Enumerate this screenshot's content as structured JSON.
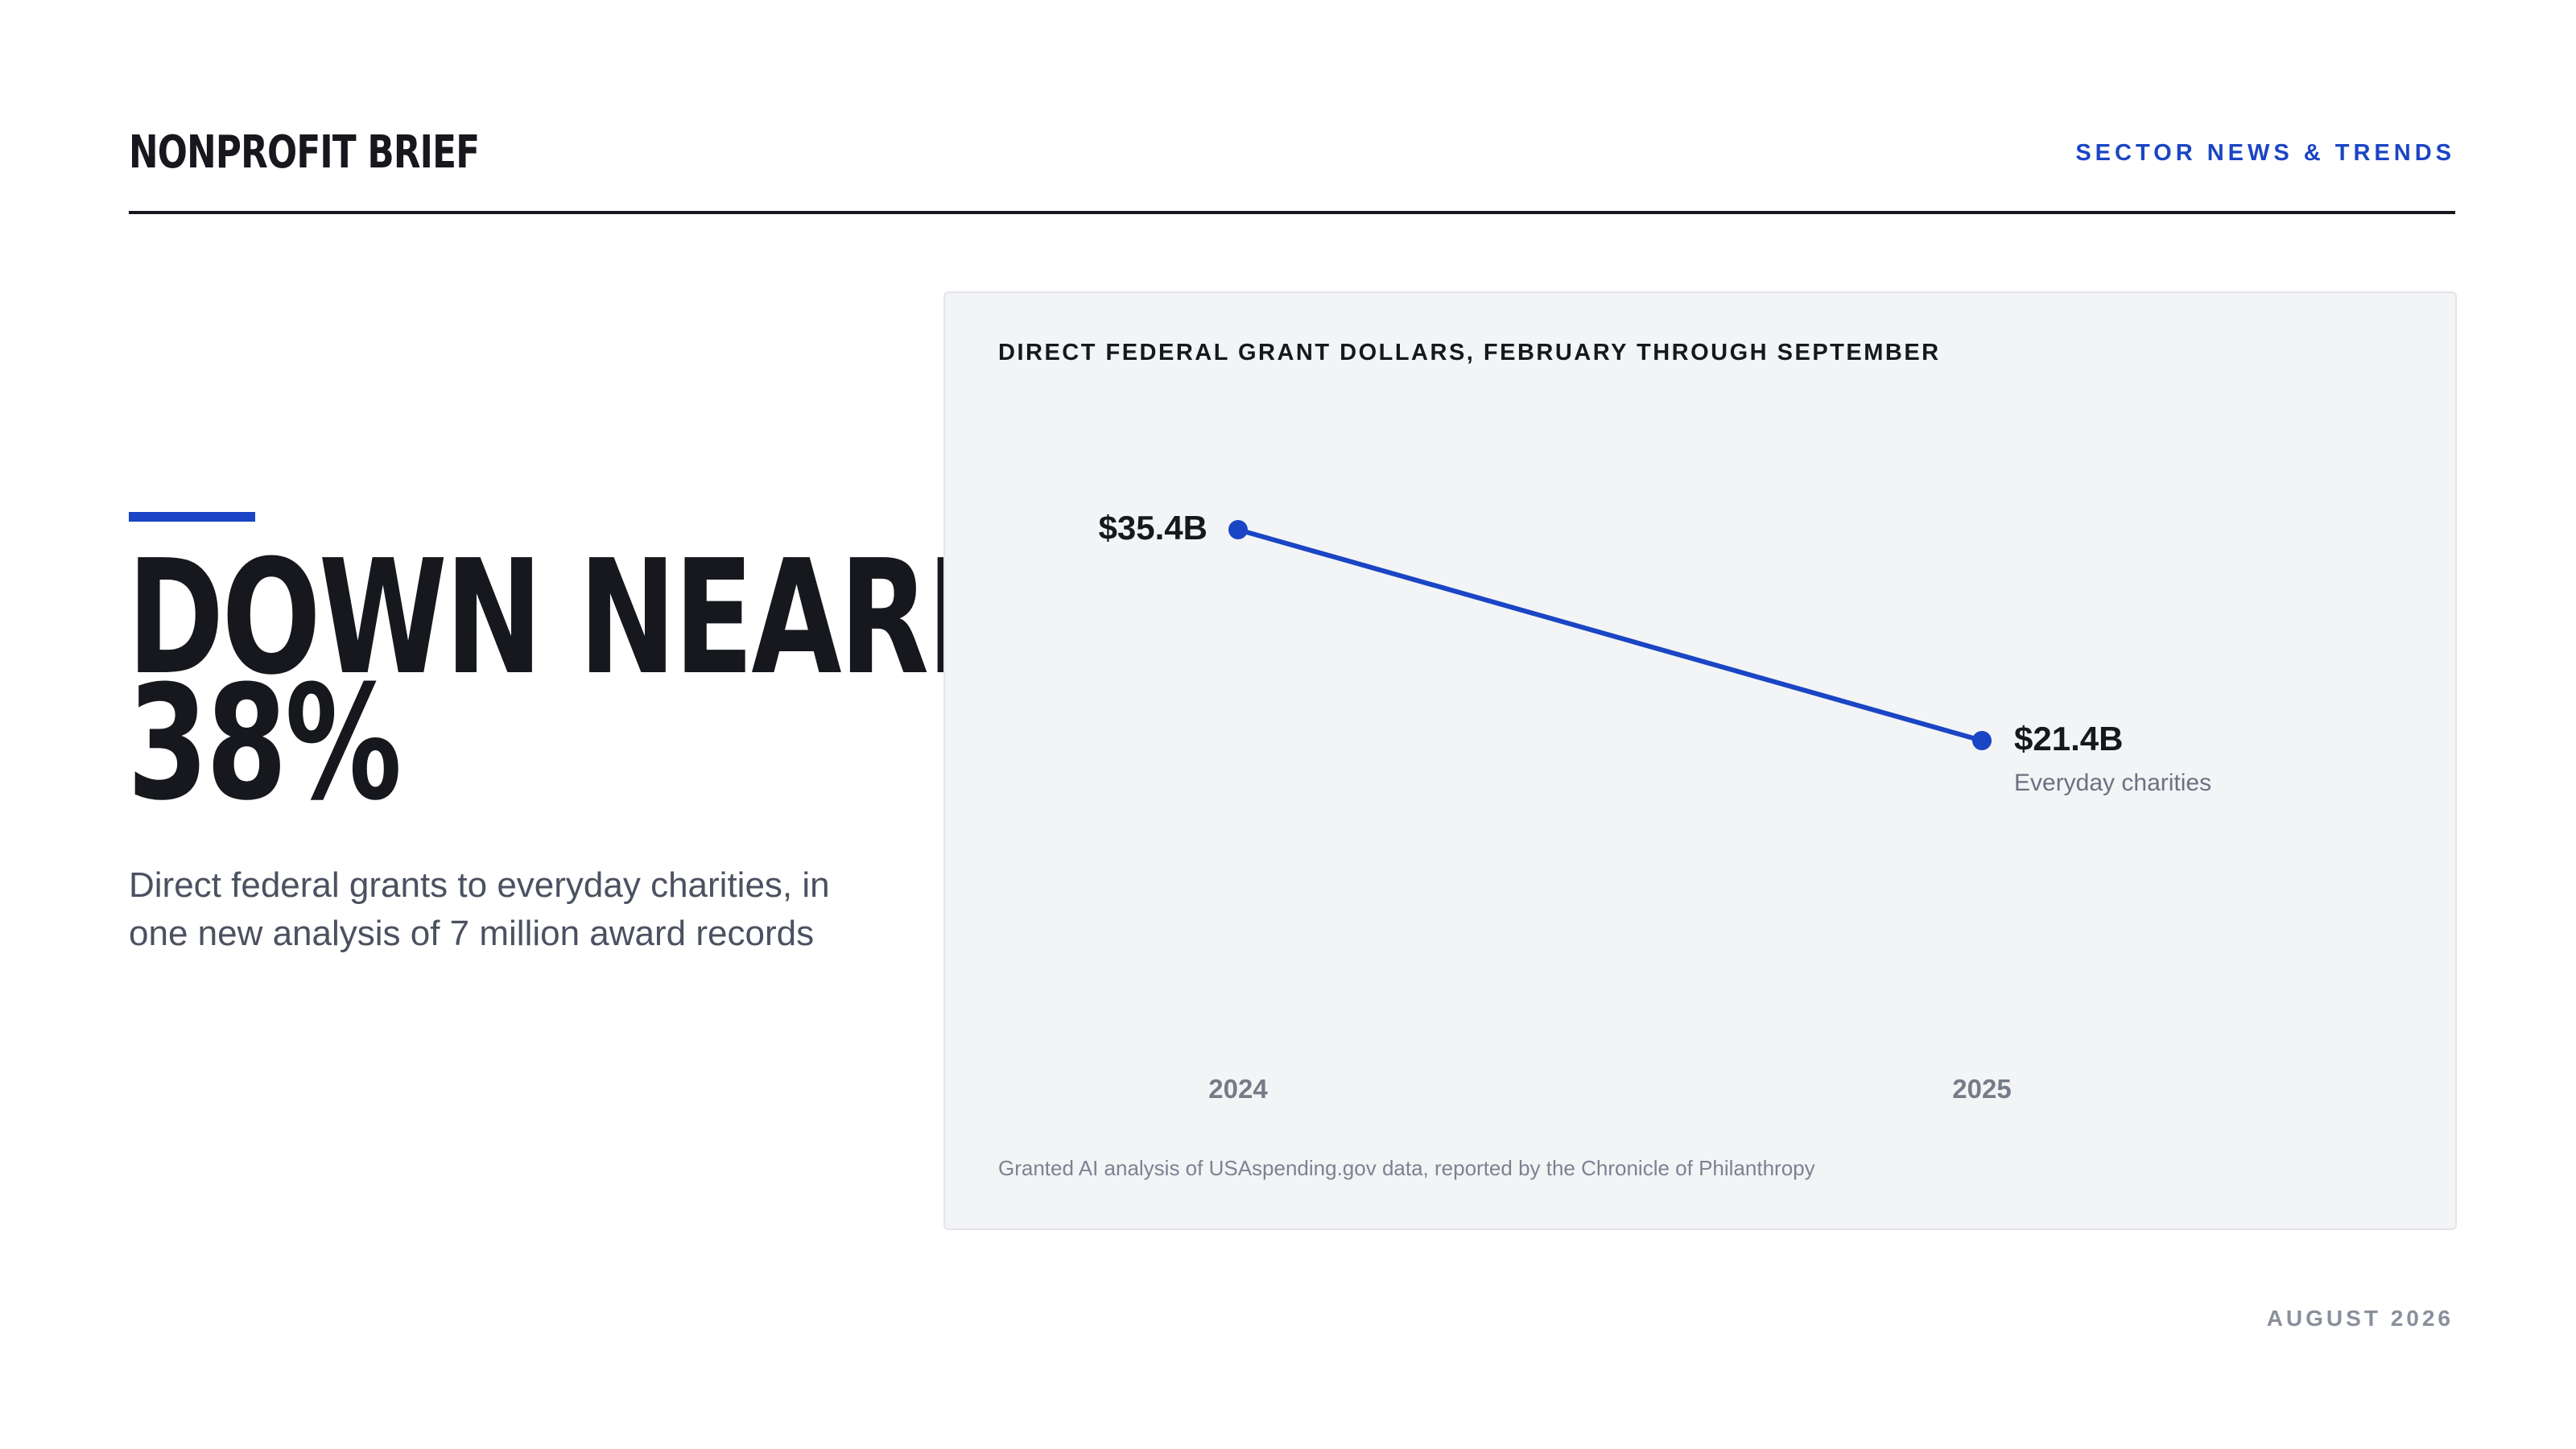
{
  "header": {
    "brand": "NONPROFIT BRIEF",
    "section": "SECTOR NEWS & TRENDS"
  },
  "story": {
    "headline_line1": "DOWN NEARLY",
    "headline_line2": "38%",
    "subhead": "Direct federal grants to everyday charities, in one new analysis of 7 million award records"
  },
  "chart_data": {
    "type": "line",
    "title": "DIRECT FEDERAL GRANT DOLLARS, FEBRUARY THROUGH SEPTEMBER",
    "x": [
      "2024",
      "2025"
    ],
    "series": [
      {
        "name": "Everyday charities",
        "values": [
          35.4,
          21.4
        ],
        "labels": [
          "$35.4B",
          "$21.4B"
        ]
      }
    ],
    "line_color": "#1a45c4",
    "grid": false,
    "source": "Granted AI analysis of USAspending.gov data, reported by the Chronicle of Philanthropy"
  },
  "footer": {
    "date": "AUGUST 2026"
  },
  "colors": {
    "accent": "#1a45c4",
    "text": "#16181d",
    "muted": "#4b5160",
    "panel_bg": "#f3f4f6"
  }
}
